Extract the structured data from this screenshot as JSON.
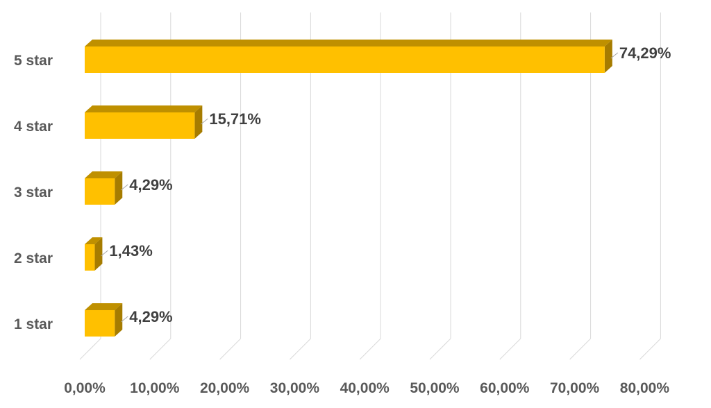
{
  "chart_data": {
    "type": "bar",
    "orientation": "horizontal",
    "style": "3d",
    "categories": [
      "5 star",
      "4 star",
      "3 star",
      "2 star",
      "1 star"
    ],
    "values": [
      74.29,
      15.71,
      4.29,
      1.43,
      4.29
    ],
    "data_labels": [
      "74,29%",
      "15,71%",
      "4,29%",
      "1,43%",
      "4,29%"
    ],
    "x_ticks": [
      "0,00%",
      "10,00%",
      "20,00%",
      "30,00%",
      "40,00%",
      "50,00%",
      "60,00%",
      "70,00%",
      "80,00%"
    ],
    "xlim": [
      0,
      80
    ],
    "title": "",
    "xlabel": "",
    "ylabel": "",
    "grid": "vertical",
    "legend": "none",
    "colors": {
      "bar_front": "#FFC000",
      "bar_top": "#BF9000",
      "bar_side": "#A67C00",
      "grid": "#D9D9D9",
      "label": "#595959",
      "data_label": "#404040"
    }
  }
}
